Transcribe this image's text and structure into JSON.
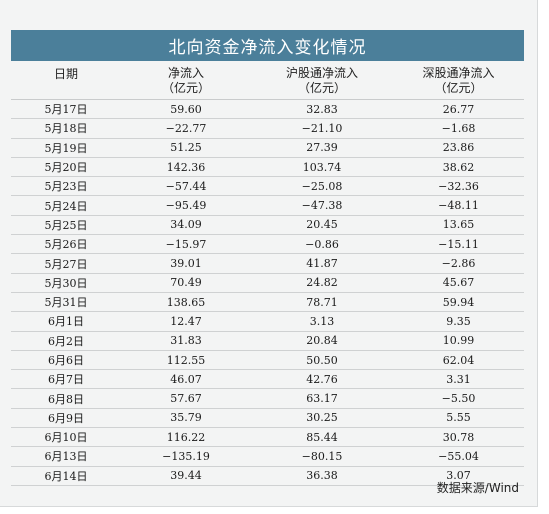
{
  "title": "北向资金净流入变化情况",
  "headers": {
    "date": "日期",
    "net": [
      "净流入",
      "（亿元）"
    ],
    "hgt": [
      "沪股通净流入",
      "（亿元）"
    ],
    "sgt": [
      "深股通净流入",
      "（亿元）"
    ]
  },
  "rows": [
    {
      "date": "5月17日",
      "net": "59.60",
      "hgt": "32.83",
      "sgt": "26.77"
    },
    {
      "date": "5月18日",
      "net": "−22.77",
      "hgt": "−21.10",
      "sgt": "−1.68"
    },
    {
      "date": "5月19日",
      "net": "51.25",
      "hgt": "27.39",
      "sgt": "23.86"
    },
    {
      "date": "5月20日",
      "net": "142.36",
      "hgt": "103.74",
      "sgt": "38.62"
    },
    {
      "date": "5月23日",
      "net": "−57.44",
      "hgt": "−25.08",
      "sgt": "−32.36"
    },
    {
      "date": "5月24日",
      "net": "−95.49",
      "hgt": "−47.38",
      "sgt": "−48.11"
    },
    {
      "date": "5月25日",
      "net": "34.09",
      "hgt": "20.45",
      "sgt": "13.65"
    },
    {
      "date": "5月26日",
      "net": "−15.97",
      "hgt": "−0.86",
      "sgt": "−15.11"
    },
    {
      "date": "5月27日",
      "net": "39.01",
      "hgt": "41.87",
      "sgt": "−2.86"
    },
    {
      "date": "5月30日",
      "net": "70.49",
      "hgt": "24.82",
      "sgt": "45.67"
    },
    {
      "date": "5月31日",
      "net": "138.65",
      "hgt": "78.71",
      "sgt": "59.94"
    },
    {
      "date": "6月1日",
      "net": "12.47",
      "hgt": "3.13",
      "sgt": "9.35"
    },
    {
      "date": "6月2日",
      "net": "31.83",
      "hgt": "20.84",
      "sgt": "10.99"
    },
    {
      "date": "6月6日",
      "net": "112.55",
      "hgt": "50.50",
      "sgt": "62.04"
    },
    {
      "date": "6月7日",
      "net": "46.07",
      "hgt": "42.76",
      "sgt": "3.31"
    },
    {
      "date": "6月8日",
      "net": "57.67",
      "hgt": "63.17",
      "sgt": "−5.50"
    },
    {
      "date": "6月9日",
      "net": "35.79",
      "hgt": "30.25",
      "sgt": "5.55"
    },
    {
      "date": "6月10日",
      "net": "116.22",
      "hgt": "85.44",
      "sgt": "30.78"
    },
    {
      "date": "6月13日",
      "net": "−135.19",
      "hgt": "−80.15",
      "sgt": "−55.04"
    },
    {
      "date": "6月14日",
      "net": "39.44",
      "hgt": "36.38",
      "sgt": "3.07"
    }
  ],
  "source": "数据来源/Wind",
  "colors": {
    "title_bg": "#4b7f9a",
    "panel_bg": "#f3f4f4",
    "rule": "#cfd1d2"
  }
}
